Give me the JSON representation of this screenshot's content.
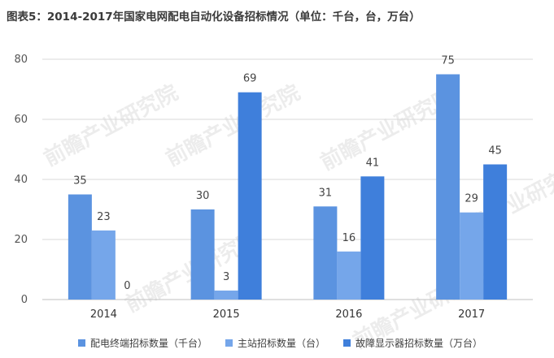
{
  "title": "图表5：2014-2017年国家电网配电自动化设备招标情况（单位：千台，台，万台）",
  "chart_data": {
    "type": "bar",
    "categories": [
      "2014",
      "2015",
      "2016",
      "2017"
    ],
    "series": [
      {
        "name": "配电终端招标数量（千台）",
        "values": [
          35,
          30,
          31,
          75
        ],
        "color": "#5b93e0"
      },
      {
        "name": "主站招标数量（台）",
        "values": [
          23,
          3,
          16,
          29
        ],
        "color": "#75a6ea"
      },
      {
        "name": "故障显示器招标数量（万台）",
        "values": [
          0,
          69,
          41,
          45
        ],
        "color": "#3f7fdb"
      }
    ],
    "ylim": [
      0,
      80
    ],
    "yticks": [
      0,
      20,
      40,
      60,
      80
    ],
    "grid": true,
    "legend": "bottom"
  },
  "watermark": "前瞻产业研究院"
}
